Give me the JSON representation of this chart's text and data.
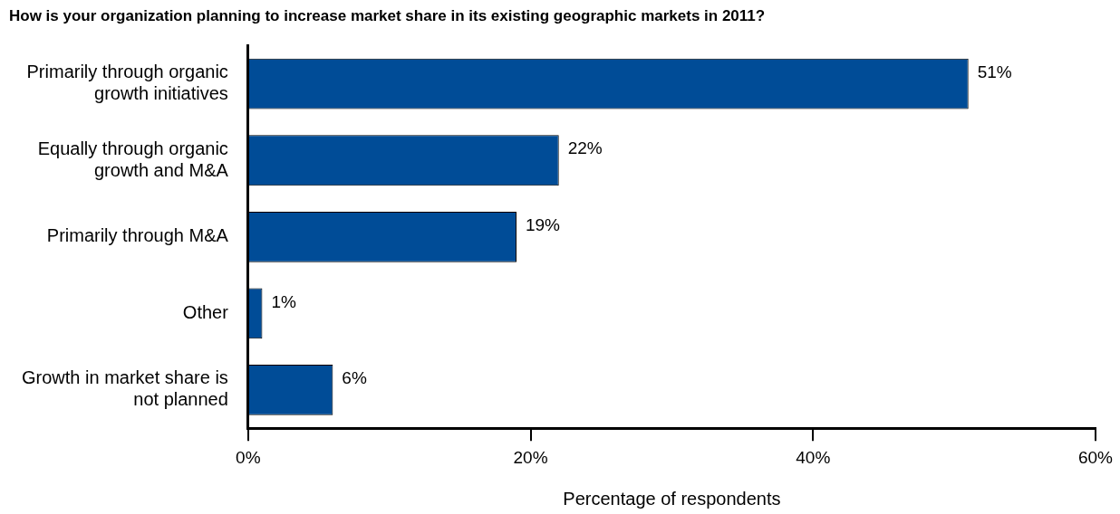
{
  "chart_data": {
    "type": "bar",
    "orientation": "horizontal",
    "title": "How is your organization planning to increase market share in its existing geographic markets in 2011?",
    "xlabel": "Percentage of respondents",
    "categories": [
      "Primarily through organic growth initiatives",
      "Equally through organic growth and M&A",
      "Primarily through M&A",
      "Other",
      "Growth in market share is not planned"
    ],
    "values": [
      51,
      22,
      19,
      1,
      6
    ],
    "value_labels": [
      "51%",
      "22%",
      "19%",
      "1%",
      "6%"
    ],
    "color": "#004c97",
    "xlim": [
      0,
      60
    ],
    "xticks": [
      {
        "value": 0,
        "label": "0%"
      },
      {
        "value": 20,
        "label": "20%"
      },
      {
        "value": 40,
        "label": "40%"
      },
      {
        "value": 60,
        "label": "60%"
      }
    ],
    "grid": false,
    "legend": false
  }
}
